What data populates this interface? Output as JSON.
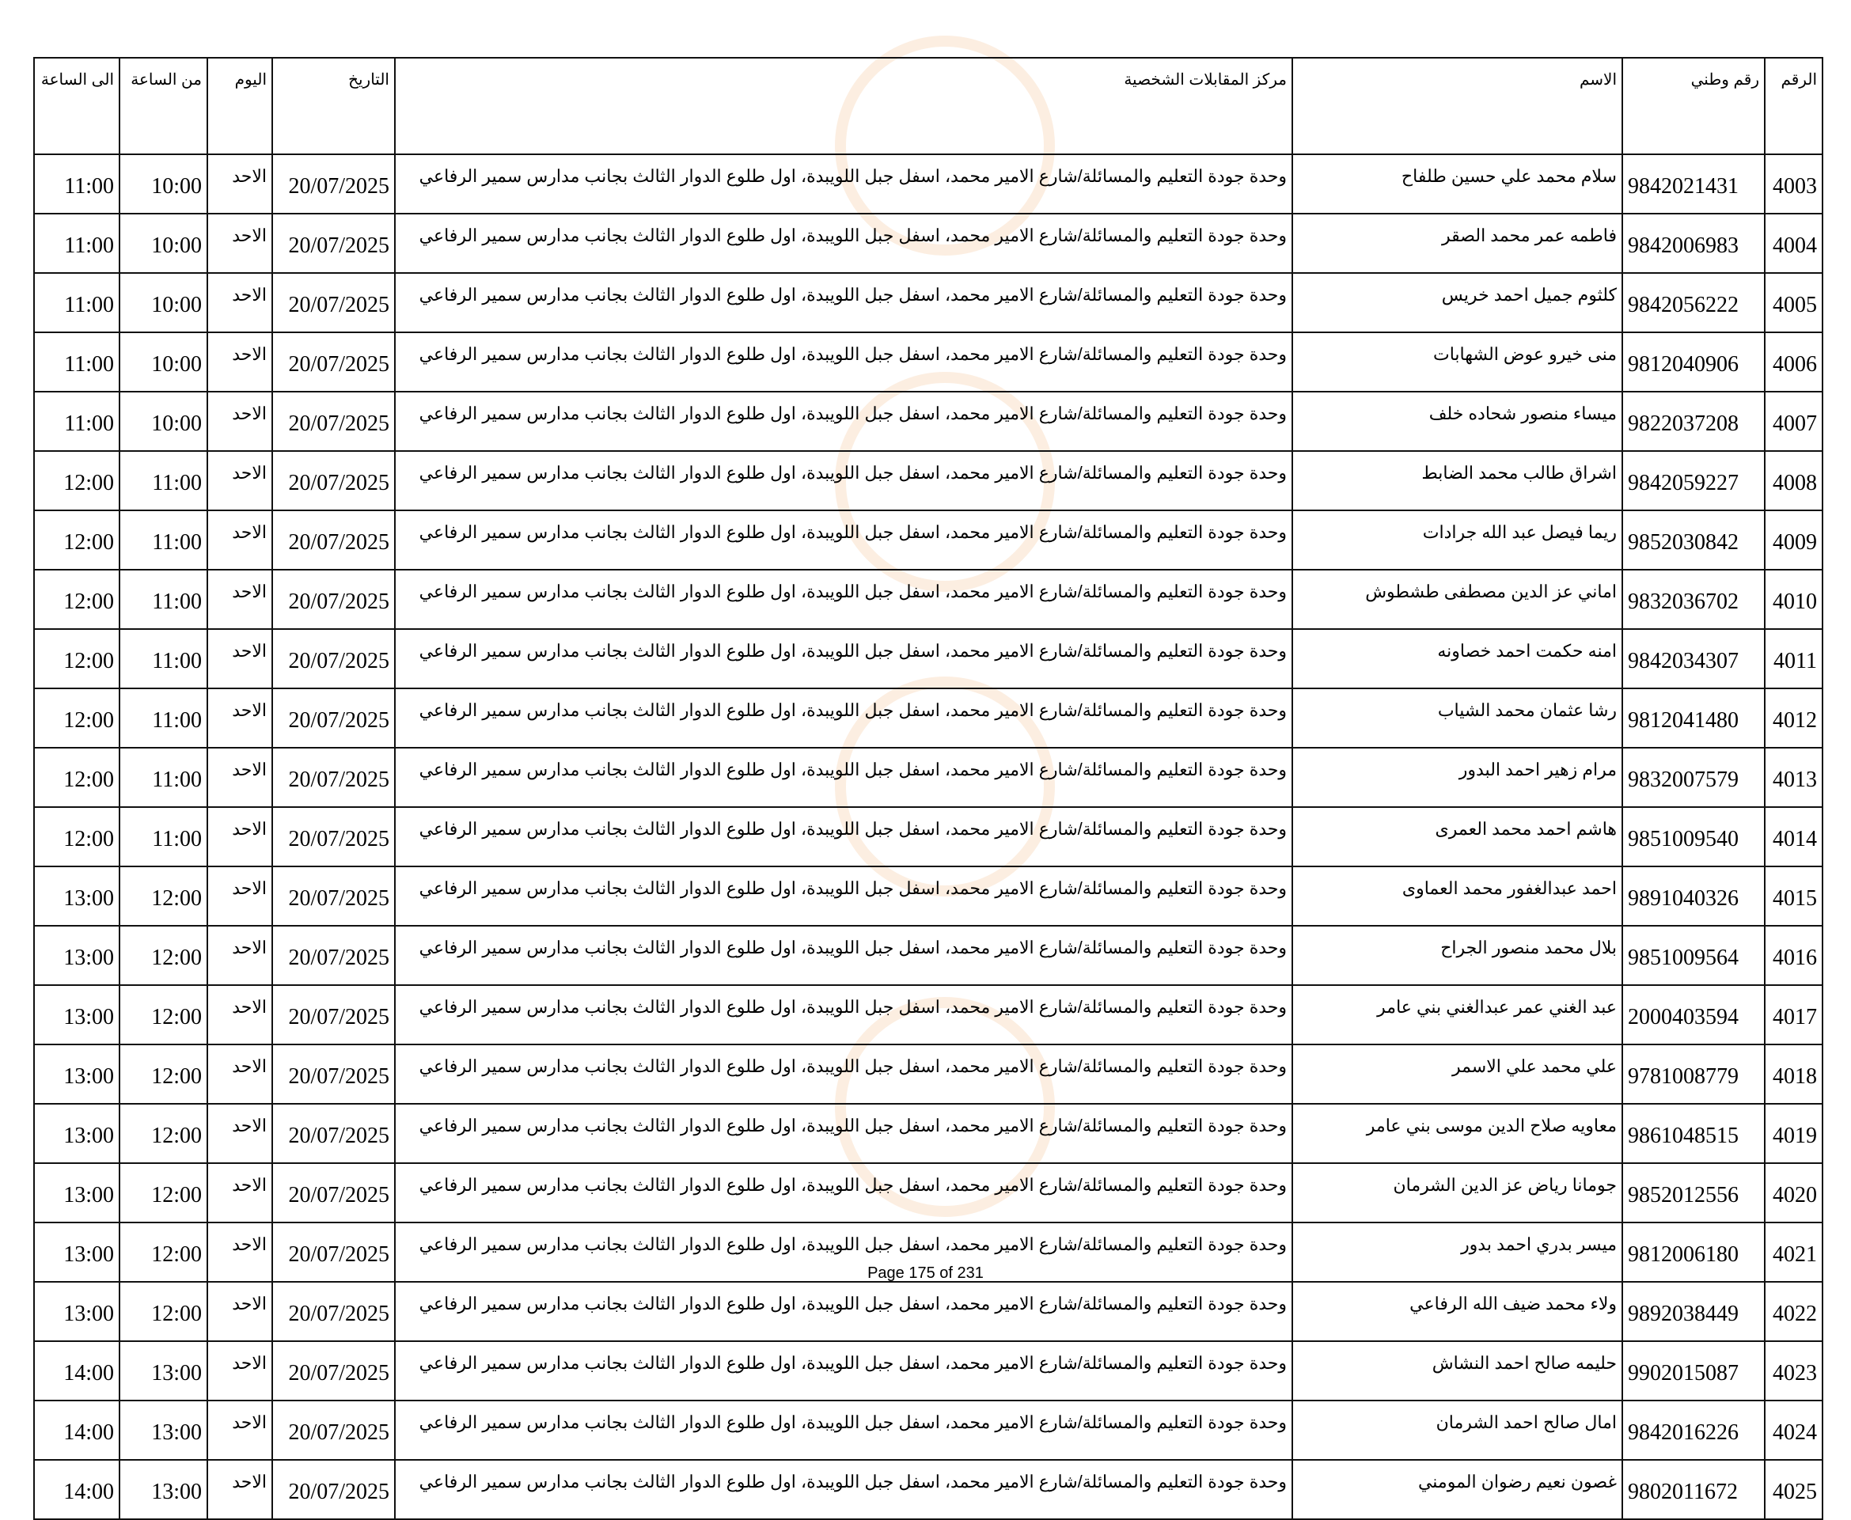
{
  "headers": [
    "الرقم",
    "رقم وطني",
    "الاسم",
    "مركز المقابلات الشخصية",
    "التاريخ",
    "اليوم",
    "من الساعة",
    "الى الساعة"
  ],
  "rows": [
    [
      "4003",
      "9842021431",
      "سلام محمد علي حسين طلفاح",
      "وحدة جودة التعليم والمسائلة/شارع الامير محمد، اسفل جبل اللويبدة، اول طلوع الدوار الثالث بجانب مدارس سمير الرفاعي",
      "20/07/2025",
      "الاحد",
      "10:00",
      "11:00"
    ],
    [
      "4004",
      "9842006983",
      "فاطمه عمر محمد الصقر",
      "وحدة جودة التعليم والمسائلة/شارع الامير محمد، اسفل جبل اللويبدة، اول طلوع الدوار الثالث بجانب مدارس سمير الرفاعي",
      "20/07/2025",
      "الاحد",
      "10:00",
      "11:00"
    ],
    [
      "4005",
      "9842056222",
      "كلثوم جميل احمد خريس",
      "وحدة جودة التعليم والمسائلة/شارع الامير محمد، اسفل جبل اللويبدة، اول طلوع الدوار الثالث بجانب مدارس سمير الرفاعي",
      "20/07/2025",
      "الاحد",
      "10:00",
      "11:00"
    ],
    [
      "4006",
      "9812040906",
      "منى خيرو عوض الشهابات",
      "وحدة جودة التعليم والمسائلة/شارع الامير محمد، اسفل جبل اللويبدة، اول طلوع الدوار الثالث بجانب مدارس سمير الرفاعي",
      "20/07/2025",
      "الاحد",
      "10:00",
      "11:00"
    ],
    [
      "4007",
      "9822037208",
      "ميساء منصور شحاده خلف",
      "وحدة جودة التعليم والمسائلة/شارع الامير محمد، اسفل جبل اللويبدة، اول طلوع الدوار الثالث بجانب مدارس سمير الرفاعي",
      "20/07/2025",
      "الاحد",
      "10:00",
      "11:00"
    ],
    [
      "4008",
      "9842059227",
      "اشراق طالب محمد الضابط",
      "وحدة جودة التعليم والمسائلة/شارع الامير محمد، اسفل جبل اللويبدة، اول طلوع الدوار الثالث بجانب مدارس سمير الرفاعي",
      "20/07/2025",
      "الاحد",
      "11:00",
      "12:00"
    ],
    [
      "4009",
      "9852030842",
      "ريما فيصل عبد الله جرادات",
      "وحدة جودة التعليم والمسائلة/شارع الامير محمد، اسفل جبل اللويبدة، اول طلوع الدوار الثالث بجانب مدارس سمير الرفاعي",
      "20/07/2025",
      "الاحد",
      "11:00",
      "12:00"
    ],
    [
      "4010",
      "9832036702",
      "اماني عز الدين مصطفى طشطوش",
      "وحدة جودة التعليم والمسائلة/شارع الامير محمد، اسفل جبل اللويبدة، اول طلوع الدوار الثالث بجانب مدارس سمير الرفاعي",
      "20/07/2025",
      "الاحد",
      "11:00",
      "12:00"
    ],
    [
      "4011",
      "9842034307",
      "امنه حكمت احمد خصاونه",
      "وحدة جودة التعليم والمسائلة/شارع الامير محمد، اسفل جبل اللويبدة، اول طلوع الدوار الثالث بجانب مدارس سمير الرفاعي",
      "20/07/2025",
      "الاحد",
      "11:00",
      "12:00"
    ],
    [
      "4012",
      "9812041480",
      "رشا عثمان محمد الشياب",
      "وحدة جودة التعليم والمسائلة/شارع الامير محمد، اسفل جبل اللويبدة، اول طلوع الدوار الثالث بجانب مدارس سمير الرفاعي",
      "20/07/2025",
      "الاحد",
      "11:00",
      "12:00"
    ],
    [
      "4013",
      "9832007579",
      "مرام زهير احمد البدور",
      "وحدة جودة التعليم والمسائلة/شارع الامير محمد، اسفل جبل اللويبدة، اول طلوع الدوار الثالث بجانب مدارس سمير الرفاعي",
      "20/07/2025",
      "الاحد",
      "11:00",
      "12:00"
    ],
    [
      "4014",
      "9851009540",
      "هاشم احمد محمد العمرى",
      "وحدة جودة التعليم والمسائلة/شارع الامير محمد، اسفل جبل اللويبدة، اول طلوع الدوار الثالث بجانب مدارس سمير الرفاعي",
      "20/07/2025",
      "الاحد",
      "11:00",
      "12:00"
    ],
    [
      "4015",
      "9891040326",
      "احمد عبدالغفور محمد العماوى",
      "وحدة جودة التعليم والمسائلة/شارع الامير محمد، اسفل جبل اللويبدة، اول طلوع الدوار الثالث بجانب مدارس سمير الرفاعي",
      "20/07/2025",
      "الاحد",
      "12:00",
      "13:00"
    ],
    [
      "4016",
      "9851009564",
      "بلال محمد منصور الجراح",
      "وحدة جودة التعليم والمسائلة/شارع الامير محمد، اسفل جبل اللويبدة، اول طلوع الدوار الثالث بجانب مدارس سمير الرفاعي",
      "20/07/2025",
      "الاحد",
      "12:00",
      "13:00"
    ],
    [
      "4017",
      "2000403594",
      "عبد الغني عمر عبدالغني بني عامر",
      "وحدة جودة التعليم والمسائلة/شارع الامير محمد، اسفل جبل اللويبدة، اول طلوع الدوار الثالث بجانب مدارس سمير الرفاعي",
      "20/07/2025",
      "الاحد",
      "12:00",
      "13:00"
    ],
    [
      "4018",
      "9781008779",
      "علي محمد علي الاسمر",
      "وحدة جودة التعليم والمسائلة/شارع الامير محمد، اسفل جبل اللويبدة، اول طلوع الدوار الثالث بجانب مدارس سمير الرفاعي",
      "20/07/2025",
      "الاحد",
      "12:00",
      "13:00"
    ],
    [
      "4019",
      "9861048515",
      "معاويه صلاح  الدين موسى بني  عامر",
      "وحدة جودة التعليم والمسائلة/شارع الامير محمد، اسفل جبل اللويبدة، اول طلوع الدوار الثالث بجانب مدارس سمير الرفاعي",
      "20/07/2025",
      "الاحد",
      "12:00",
      "13:00"
    ],
    [
      "4020",
      "9852012556",
      "جومانا رياض عز الدين الشرمان",
      "وحدة جودة التعليم والمسائلة/شارع الامير محمد، اسفل جبل اللويبدة، اول طلوع الدوار الثالث بجانب مدارس سمير الرفاعي",
      "20/07/2025",
      "الاحد",
      "12:00",
      "13:00"
    ],
    [
      "4021",
      "9812006180",
      "ميسر بدري احمد بدور",
      "وحدة جودة التعليم والمسائلة/شارع الامير محمد، اسفل جبل اللويبدة، اول طلوع الدوار الثالث بجانب مدارس سمير الرفاعي",
      "20/07/2025",
      "الاحد",
      "12:00",
      "13:00"
    ],
    [
      "4022",
      "9892038449",
      "ولاء محمد ضيف  الله الرفاعي",
      "وحدة جودة التعليم والمسائلة/شارع الامير محمد، اسفل جبل اللويبدة، اول طلوع الدوار الثالث بجانب مدارس سمير الرفاعي",
      "20/07/2025",
      "الاحد",
      "12:00",
      "13:00"
    ],
    [
      "4023",
      "9902015087",
      "حليمه صالح احمد النشاش",
      "وحدة جودة التعليم والمسائلة/شارع الامير محمد، اسفل جبل اللويبدة، اول طلوع الدوار الثالث بجانب مدارس سمير الرفاعي",
      "20/07/2025",
      "الاحد",
      "13:00",
      "14:00"
    ],
    [
      "4024",
      "9842016226",
      "امال صالح احمد الشرمان",
      "وحدة جودة التعليم والمسائلة/شارع الامير محمد، اسفل جبل اللويبدة، اول طلوع الدوار الثالث بجانب مدارس سمير الرفاعي",
      "20/07/2025",
      "الاحد",
      "13:00",
      "14:00"
    ],
    [
      "4025",
      "9802011672",
      "غصون نعيم رضوان المومني",
      "وحدة جودة التعليم والمسائلة/شارع الامير محمد، اسفل جبل اللويبدة، اول طلوع الدوار الثالث بجانب مدارس سمير الرفاعي",
      "20/07/2025",
      "الاحد",
      "13:00",
      "14:00"
    ]
  ],
  "footer": "Page 175 of 231",
  "watermark": {
    "icon": "clock-logo-watermark",
    "color": "#f0a05a"
  }
}
